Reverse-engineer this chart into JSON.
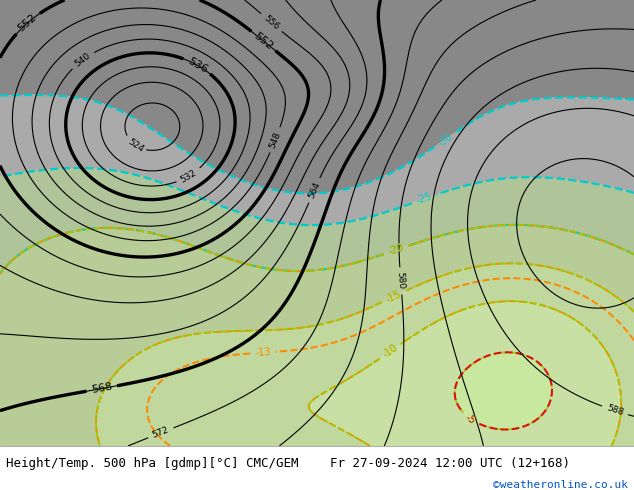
{
  "title_left": "Height/Temp. 500 hPa [gdmp][°C] CMC/GEM",
  "title_right": "Fr 27-09-2024 12:00 UTC (12+168)",
  "credit": "©weatheronline.co.uk",
  "title_fontsize": 9,
  "credit_fontsize": 8,
  "credit_color": "#0055cc"
}
